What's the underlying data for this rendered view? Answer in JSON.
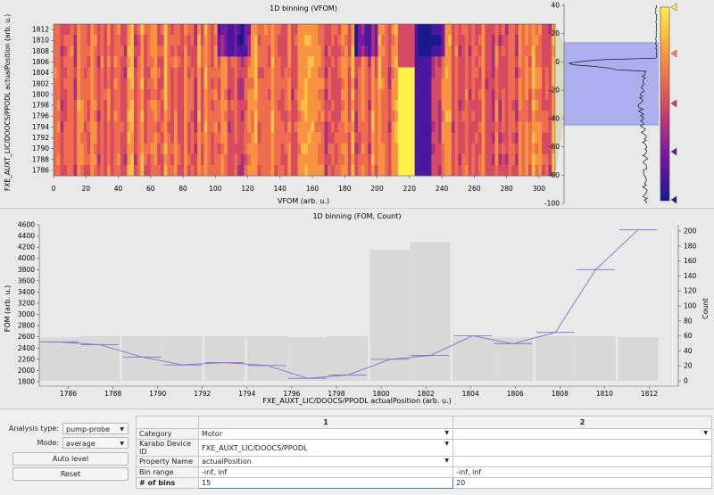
{
  "heatmap": {
    "title": "1D binning (VFOM)",
    "ylabel": "FXE_AUXT_LIC/DOOCS/PPODL actualPosition (arb. u.)",
    "xlabel": "VFOM (arb. u.)",
    "y_ticks": [
      "1812",
      "1810",
      "1808",
      "1806",
      "1804",
      "1802",
      "1800",
      "1798",
      "1796",
      "1794",
      "1792",
      "1790",
      "1788",
      "1786"
    ],
    "x_ticks": [
      "0",
      "20",
      "40",
      "60",
      "80",
      "100",
      "120",
      "140",
      "160",
      "180",
      "200",
      "220",
      "240",
      "260",
      "280",
      "300"
    ]
  },
  "histogram": {
    "ticks": [
      "40",
      "20",
      "0",
      "-20",
      "-40",
      "-60",
      "-80",
      "-100"
    ],
    "marker_colors": [
      "#ffe94d",
      "#f58a4a",
      "#c83a6c",
      "#6a1a9a",
      "#1a1a8c"
    ]
  },
  "chart_data": {
    "type": "line",
    "title": "1D binning (FOM, Count)",
    "xlabel": "FXE_AUXT_LIC/DOOCS/PPODL actualPosition (arb. u.)",
    "ylabel": "FOM (arb. u.)",
    "y2label": "Count",
    "x_ticks": [
      "1786",
      "1788",
      "1790",
      "1792",
      "1794",
      "1796",
      "1798",
      "1800",
      "1802",
      "1804",
      "1806",
      "1808",
      "1810",
      "1812"
    ],
    "y_ticks": [
      "4600",
      "4400",
      "4200",
      "4000",
      "3800",
      "3600",
      "3400",
      "3200",
      "3000",
      "2800",
      "2600",
      "2400",
      "2200",
      "2000",
      "1800"
    ],
    "y2_ticks": [
      "200",
      "180",
      "160",
      "140",
      "120",
      "100",
      "80",
      "60",
      "40",
      "20",
      "0"
    ],
    "xlim": [
      1784.7,
      1813.3
    ],
    "ylim": [
      1800,
      4600
    ],
    "y2lim": [
      0,
      200
    ],
    "x": [
      1785.6,
      1787.4,
      1789.3,
      1791.1,
      1793.0,
      1794.9,
      1796.7,
      1798.5,
      1800.4,
      1802.2,
      1804.1,
      1805.9,
      1807.8,
      1809.6,
      1811.5
    ],
    "fom": [
      2510,
      2460,
      2240,
      2100,
      2140,
      2090,
      1860,
      1920,
      2200,
      2270,
      2620,
      2480,
      2680,
      3800,
      4510
    ],
    "counts": [
      58,
      60,
      60,
      60,
      60,
      60,
      58,
      60,
      175,
      185,
      58,
      58,
      60,
      60,
      58
    ]
  },
  "controls": {
    "analysis_type_label": "Analysis type:",
    "analysis_type_value": "pump-probe",
    "mode_label": "Mode:",
    "mode_value": "average",
    "auto_level_label": "Auto level",
    "reset_label": "Reset"
  },
  "table": {
    "col1": "1",
    "col2": "2",
    "rows": [
      {
        "header": "Category",
        "v1": "Motor",
        "v2": ""
      },
      {
        "header": "Karabo Device ID",
        "v1": "FXE_AUXT_LIC/DOOCS/PPODL",
        "v2": ""
      },
      {
        "header": "Property Name",
        "v1": "actualPosition",
        "v2": ""
      },
      {
        "header": "Bin range",
        "v1": "-inf, inf",
        "v2": "-inf, inf"
      },
      {
        "header": "# of bins",
        "v1": "15",
        "v2": "20"
      }
    ]
  }
}
